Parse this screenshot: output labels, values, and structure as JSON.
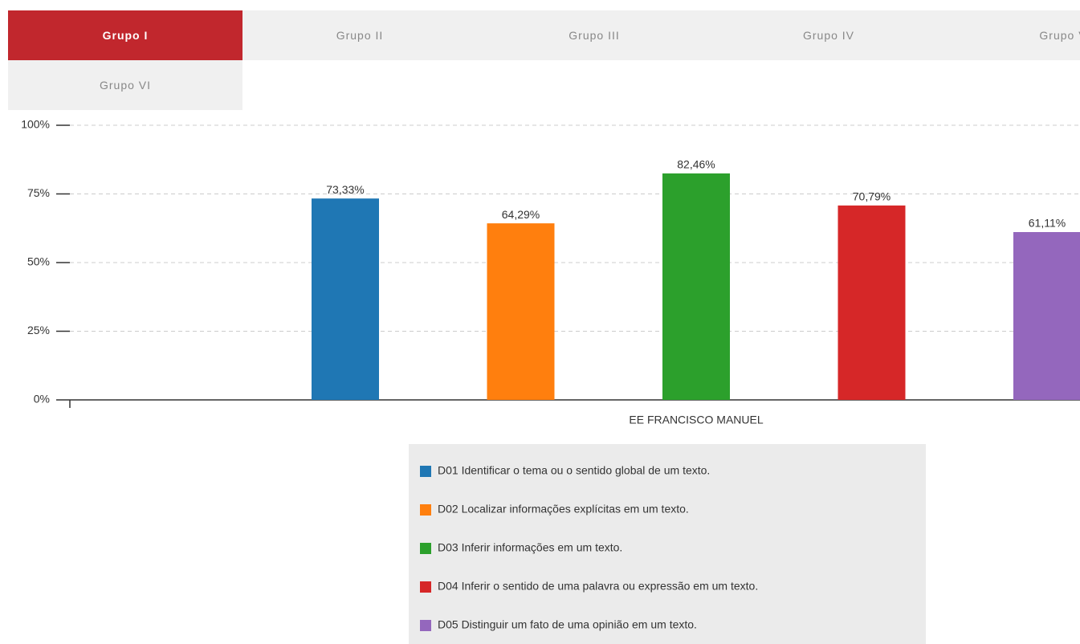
{
  "tabs": [
    "Grupo I",
    "Grupo II",
    "Grupo III",
    "Grupo IV",
    "Grupo V",
    "Grupo VI"
  ],
  "chart_data": {
    "type": "bar",
    "categories": [
      "EE FRANCISCO MANUEL"
    ],
    "series": [
      {
        "name": "D01 Identificar o tema ou o sentido global de um texto.",
        "color": "#1f77b4",
        "values": [
          73.33
        ],
        "value_labels": [
          "73,33%"
        ]
      },
      {
        "name": "D02 Localizar informações explícitas em um texto.",
        "color": "#ff7f0e",
        "values": [
          64.29
        ],
        "value_labels": [
          "64,29%"
        ]
      },
      {
        "name": "D03 Inferir informações em um texto.",
        "color": "#2ca02c",
        "values": [
          82.46
        ],
        "value_labels": [
          "82,46%"
        ]
      },
      {
        "name": "D04 Inferir o sentido de uma palavra ou expressão em um texto.",
        "color": "#d62728",
        "values": [
          70.79
        ],
        "value_labels": [
          "70,79%"
        ]
      },
      {
        "name": "D05 Distinguir um fato de uma opinião em um texto.",
        "color": "#9467bd",
        "values": [
          61.11
        ],
        "value_labels": [
          "61,11%"
        ]
      }
    ],
    "ylim": [
      0,
      100
    ],
    "yticks": [
      {
        "value": 0,
        "label": "0%"
      },
      {
        "value": 25,
        "label": "25%"
      },
      {
        "value": 50,
        "label": "50%"
      },
      {
        "value": 75,
        "label": "75%"
      },
      {
        "value": 100,
        "label": "100%"
      }
    ],
    "grid": true
  }
}
